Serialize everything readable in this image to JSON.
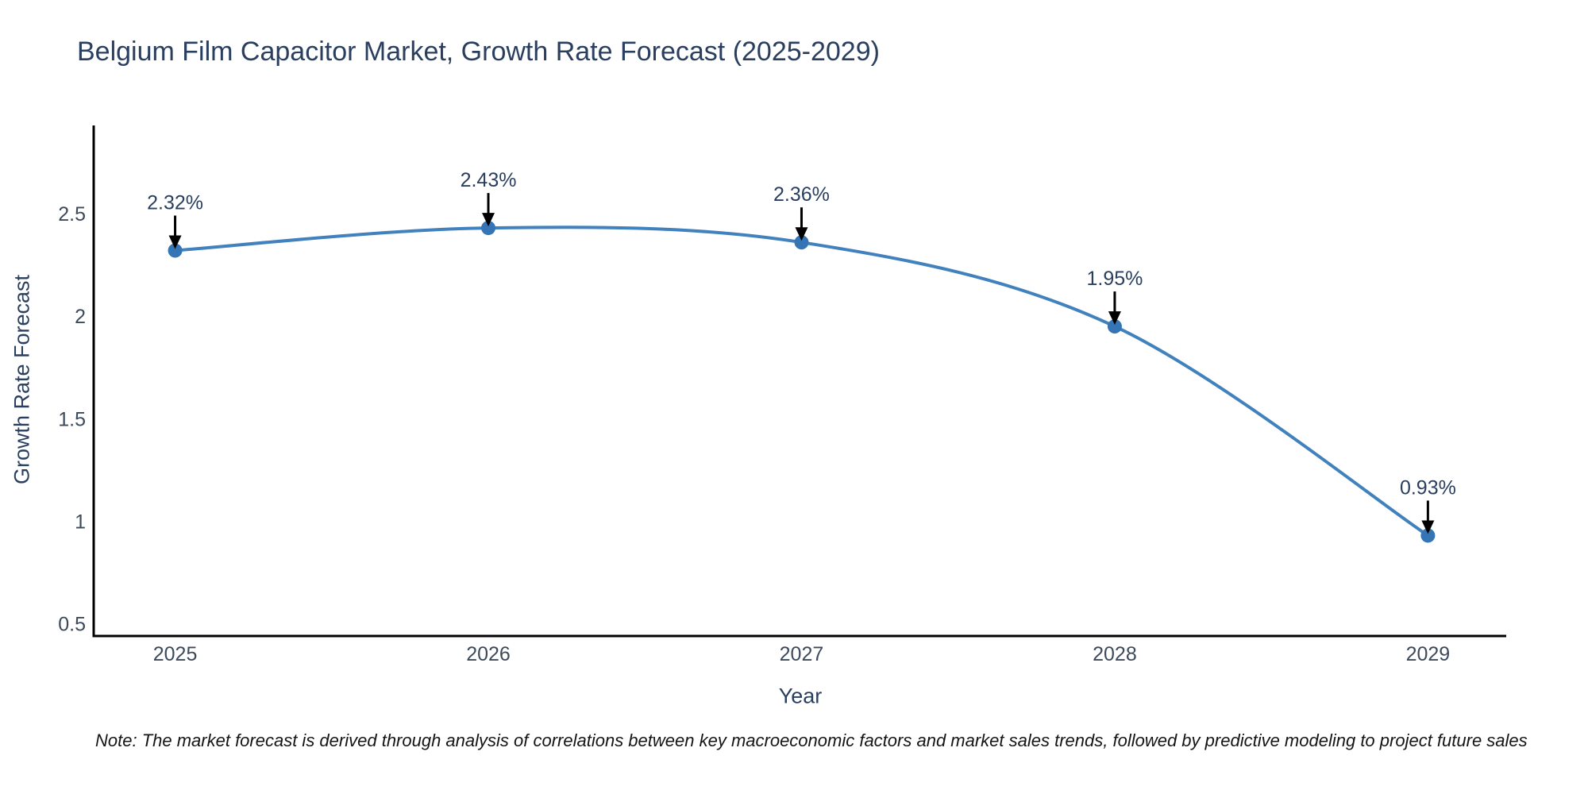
{
  "note": "Note: The market forecast is derived through analysis of correlations between key macroeconomic factors and market sales trends, followed by predictive modeling to project future sales",
  "chart_data": {
    "type": "line",
    "title": "Belgium Film Capacitor Market, Growth Rate Forecast (2025-2029)",
    "xlabel": "Year",
    "ylabel": "Growth Rate Forecast",
    "categories": [
      2025,
      2026,
      2027,
      2028,
      2029
    ],
    "series": [
      {
        "name": "Growth Rate Forecast",
        "values": [
          2.32,
          2.43,
          2.36,
          1.95,
          0.93
        ]
      }
    ],
    "point_labels": [
      "2.32%",
      "2.43%",
      "2.36%",
      "1.95%",
      "0.93%"
    ],
    "x_tick_labels": [
      "2025",
      "2026",
      "2027",
      "2028",
      "2029"
    ],
    "y_ticks": [
      0.5,
      1,
      1.5,
      2,
      2.5
    ],
    "y_tick_labels": [
      "0.5",
      "1",
      "1.5",
      "2",
      "2.5"
    ],
    "xlim": [
      2024.74,
      2029.25
    ],
    "ylim": [
      0.44,
      2.93
    ],
    "grid": false,
    "legend": "none",
    "line_shape": "spline",
    "colors": {
      "line": "#4181bd",
      "marker": "#3575b5",
      "axis": "#000000",
      "title_text": "#2a3f5f",
      "tick_text": "#3d4a5c",
      "annotation_text": "#2a3f5f",
      "arrow": "#000000",
      "note_text": "#151515"
    }
  }
}
